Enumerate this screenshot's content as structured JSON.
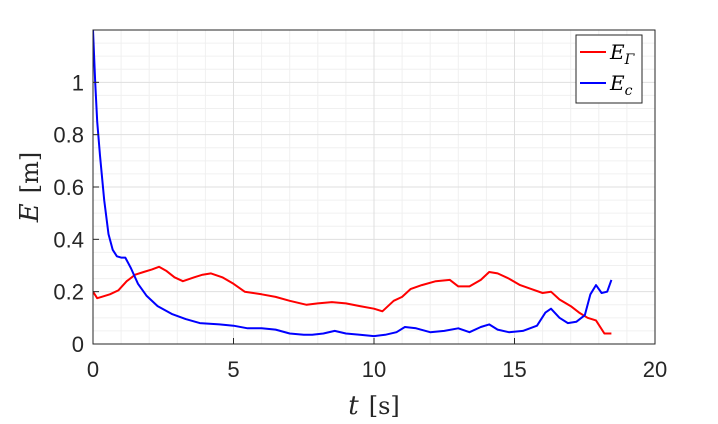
{
  "chart_data": {
    "type": "line",
    "xlabel": {
      "symbol": "t",
      "unit": "[s]"
    },
    "ylabel": {
      "symbol": "E",
      "unit": "[m]"
    },
    "xlim": [
      0,
      20
    ],
    "ylim": [
      0,
      1.2
    ],
    "xticks": [
      "0",
      "5",
      "10",
      "15",
      "20"
    ],
    "yticks": [
      "0",
      "0.2",
      "0.4",
      "0.6",
      "0.8",
      "1"
    ],
    "grid": true,
    "minor_grid": true,
    "legend_position": "top-right",
    "series": [
      {
        "name": "E_Γ",
        "color": "#ff0000",
        "x": [
          0,
          0.15,
          0.3,
          0.6,
          0.9,
          1.2,
          1.5,
          1.8,
          2.1,
          2.35,
          2.6,
          2.9,
          3.2,
          3.6,
          3.9,
          4.2,
          4.6,
          5.0,
          5.4,
          5.7,
          6.0,
          6.5,
          7.0,
          7.6,
          8.0,
          8.5,
          9.0,
          9.5,
          10.0,
          10.3,
          10.7,
          11.0,
          11.3,
          11.7,
          12.2,
          12.7,
          13.0,
          13.4,
          13.8,
          14.1,
          14.4,
          14.8,
          15.2,
          15.6,
          16.0,
          16.3,
          16.6,
          17.0,
          17.3,
          17.6,
          17.9,
          18.2,
          18.45
        ],
        "values": [
          0.2,
          0.175,
          0.18,
          0.19,
          0.205,
          0.24,
          0.265,
          0.275,
          0.285,
          0.295,
          0.28,
          0.255,
          0.24,
          0.255,
          0.265,
          0.27,
          0.255,
          0.23,
          0.2,
          0.195,
          0.19,
          0.18,
          0.165,
          0.15,
          0.155,
          0.16,
          0.155,
          0.145,
          0.135,
          0.125,
          0.165,
          0.18,
          0.21,
          0.225,
          0.24,
          0.245,
          0.22,
          0.22,
          0.245,
          0.275,
          0.27,
          0.25,
          0.225,
          0.21,
          0.195,
          0.2,
          0.17,
          0.145,
          0.12,
          0.1,
          0.09,
          0.04,
          0.04
        ]
      },
      {
        "name": "E_c",
        "color": "#0000ff",
        "x": [
          0,
          0.08,
          0.15,
          0.25,
          0.4,
          0.55,
          0.7,
          0.85,
          1.0,
          1.15,
          1.35,
          1.6,
          1.9,
          2.3,
          2.8,
          3.3,
          3.8,
          4.5,
          5.0,
          5.5,
          6.0,
          6.5,
          7.0,
          7.5,
          7.8,
          8.2,
          8.6,
          9.0,
          9.5,
          10.0,
          10.4,
          10.8,
          11.1,
          11.5,
          12.0,
          12.5,
          13.0,
          13.4,
          13.8,
          14.1,
          14.4,
          14.8,
          15.3,
          15.8,
          16.1,
          16.3,
          16.6,
          16.9,
          17.2,
          17.5,
          17.7,
          17.9,
          18.1,
          18.3,
          18.45
        ],
        "values": [
          1.2,
          1.0,
          0.85,
          0.72,
          0.55,
          0.42,
          0.36,
          0.335,
          0.33,
          0.33,
          0.29,
          0.23,
          0.185,
          0.145,
          0.115,
          0.095,
          0.08,
          0.075,
          0.07,
          0.06,
          0.06,
          0.055,
          0.04,
          0.035,
          0.035,
          0.04,
          0.05,
          0.04,
          0.035,
          0.03,
          0.035,
          0.045,
          0.065,
          0.06,
          0.045,
          0.05,
          0.06,
          0.045,
          0.065,
          0.075,
          0.055,
          0.045,
          0.05,
          0.07,
          0.12,
          0.135,
          0.1,
          0.08,
          0.085,
          0.11,
          0.19,
          0.225,
          0.195,
          0.2,
          0.245
        ]
      }
    ]
  }
}
